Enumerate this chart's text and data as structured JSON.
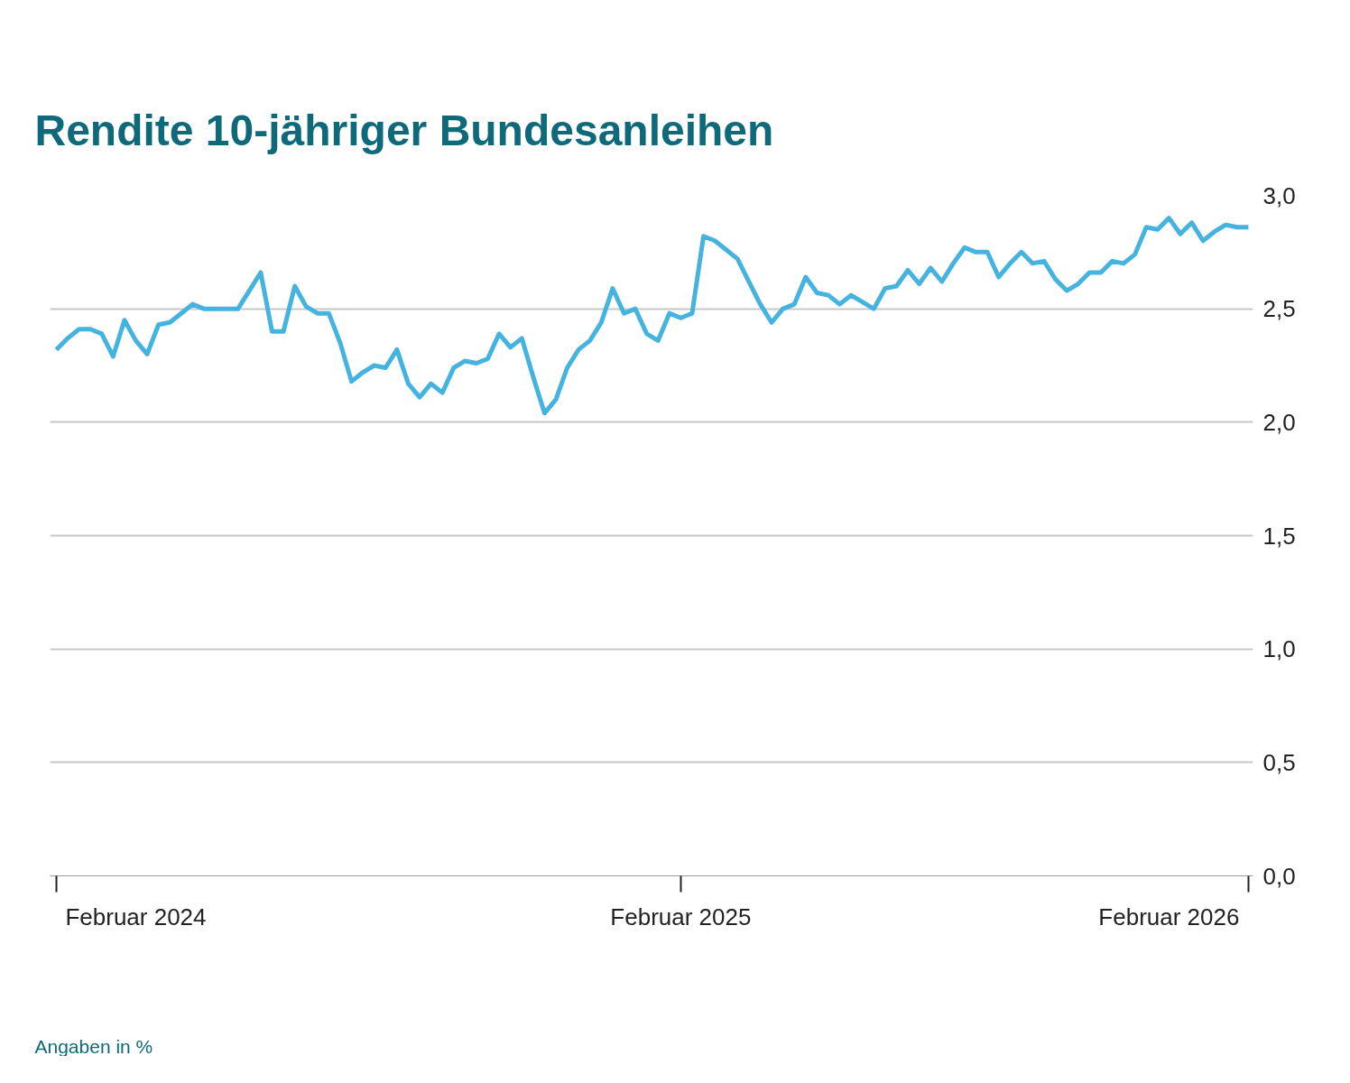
{
  "chart_data": {
    "type": "line",
    "title": "Rendite 10-jähriger Bundesanleihen",
    "annotations": [
      "Angaben in %"
    ],
    "categories": [
      null,
      null,
      null,
      null,
      null,
      null,
      null,
      "Februar 2024",
      null,
      null,
      null,
      null,
      null,
      null,
      null,
      null,
      null,
      null,
      null,
      null,
      null,
      null,
      null,
      null,
      null,
      null,
      null,
      null,
      null,
      null,
      null,
      null,
      null,
      null,
      null,
      null,
      null,
      null,
      null,
      null,
      null,
      null,
      null,
      null,
      null,
      null,
      null,
      null,
      null,
      null,
      null,
      null,
      null,
      null,
      null,
      "Februar 2025",
      null,
      null,
      null,
      null,
      null,
      null,
      null,
      null,
      null,
      null,
      null,
      null,
      null,
      null,
      null,
      null,
      null,
      null,
      null,
      null,
      null,
      null,
      null,
      null,
      null,
      null,
      null,
      null,
      null,
      null,
      null,
      null,
      null,
      null,
      null,
      null,
      null,
      null,
      null,
      null,
      null,
      null,
      "Februar 2026",
      null,
      null,
      null,
      null,
      null,
      null,
      null
    ],
    "series": [
      {
        "color": "#45b3e0",
        "values": [
          2.32,
          2.37,
          2.41,
          2.41,
          2.39,
          2.29,
          2.45,
          2.36,
          2.3,
          2.43,
          2.44,
          2.48,
          2.52,
          2.5,
          2.5,
          2.5,
          2.5,
          2.58,
          2.66,
          2.4,
          2.4,
          2.6,
          2.51,
          2.48,
          2.48,
          2.35,
          2.18,
          2.22,
          2.25,
          2.24,
          2.32,
          2.17,
          2.11,
          2.17,
          2.13,
          2.24,
          2.27,
          2.26,
          2.28,
          2.39,
          2.33,
          2.37,
          2.2,
          2.04,
          2.1,
          2.24,
          2.32,
          2.36,
          2.44,
          2.59,
          2.48,
          2.5,
          2.39,
          2.36,
          2.48,
          2.46,
          2.48,
          2.82,
          2.8,
          2.76,
          2.72,
          2.62,
          2.52,
          2.44,
          2.5,
          2.52,
          2.64,
          2.57,
          2.56,
          2.52,
          2.56,
          2.53,
          2.5,
          2.59,
          2.6,
          2.67,
          2.61,
          2.68,
          2.62,
          2.7,
          2.77,
          2.75,
          2.75,
          2.64,
          2.7,
          2.75,
          2.7,
          2.71,
          2.63,
          2.58,
          2.61,
          2.66,
          2.66,
          2.71,
          2.7,
          2.74,
          2.86,
          2.85,
          2.9,
          2.83,
          2.88,
          2.8,
          2.84,
          2.87,
          2.86,
          2.86
        ]
      }
    ],
    "ylim": [
      0,
      3
    ],
    "yticks": [
      {
        "value": 0,
        "label": "0,0"
      },
      {
        "value": 0.5,
        "label": "0,5"
      },
      {
        "value": 1,
        "label": "1,0"
      },
      {
        "value": 1.5,
        "label": "1,5"
      },
      {
        "value": 2,
        "label": "2,0"
      },
      {
        "value": 2.5,
        "label": "2,5"
      },
      {
        "value": 3,
        "label": "3,0"
      }
    ],
    "grid": "y",
    "line_style": "solid",
    "marker": "none"
  }
}
